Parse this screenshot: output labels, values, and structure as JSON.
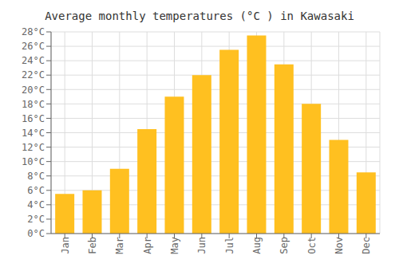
{
  "chart_data": {
    "type": "bar",
    "title": "Average monthly temperatures (°C ) in Kawasaki",
    "categories": [
      "Jan",
      "Feb",
      "Mar",
      "Apr",
      "May",
      "Jun",
      "Jul",
      "Aug",
      "Sep",
      "Oct",
      "Nov",
      "Dec"
    ],
    "values": [
      5.5,
      6.0,
      9.0,
      14.5,
      19.0,
      22.0,
      25.5,
      27.5,
      23.5,
      18.0,
      13.0,
      8.5
    ],
    "color": "#FFC020",
    "ylim": [
      0,
      28
    ],
    "yticks": [
      {
        "value": 0,
        "label": "0°C"
      },
      {
        "value": 2,
        "label": "2°C"
      },
      {
        "value": 4,
        "label": "4°C"
      },
      {
        "value": 6,
        "label": "6°C"
      },
      {
        "value": 8,
        "label": "8°C"
      },
      {
        "value": 10,
        "label": "10°C"
      },
      {
        "value": 12,
        "label": "12°C"
      },
      {
        "value": 14,
        "label": "14°C"
      },
      {
        "value": 16,
        "label": "16°C"
      },
      {
        "value": 18,
        "label": "18°C"
      },
      {
        "value": 20,
        "label": "20°C"
      },
      {
        "value": 22,
        "label": "22°C"
      },
      {
        "value": 24,
        "label": "24°C"
      },
      {
        "value": 26,
        "label": "26°C"
      },
      {
        "value": 28,
        "label": "28°C"
      }
    ],
    "grid": true
  }
}
